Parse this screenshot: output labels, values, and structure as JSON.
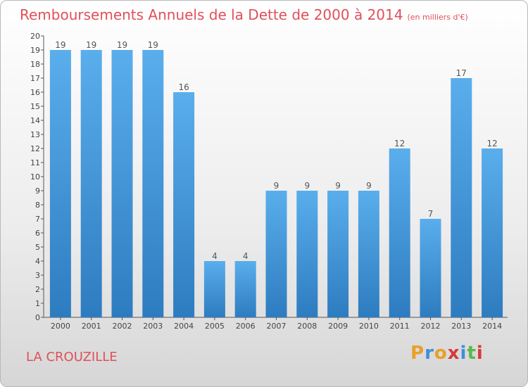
{
  "chart_data": {
    "type": "bar",
    "title": "Remboursements Annuels de la Dette de 2000 à 2014",
    "unit_label": "(en milliers d'€)",
    "categories": [
      "2000",
      "2001",
      "2002",
      "2003",
      "2004",
      "2005",
      "2006",
      "2007",
      "2008",
      "2009",
      "2010",
      "2011",
      "2012",
      "2013",
      "2014"
    ],
    "values": [
      19,
      19,
      19,
      19,
      16,
      4,
      4,
      9,
      9,
      9,
      9,
      12,
      7,
      17,
      12
    ],
    "ylim": [
      0,
      20
    ],
    "yticks": [
      "0",
      "1",
      "2",
      "3",
      "4",
      "5",
      "6",
      "7",
      "8",
      "9",
      "10",
      "11",
      "12",
      "13",
      "14",
      "15",
      "16",
      "17",
      "18",
      "19",
      "20"
    ],
    "grid": false,
    "bar_color": "#4a9ee0"
  },
  "footer": {
    "commune": "LA CROUZILLE",
    "logo": [
      "P",
      "r",
      "o",
      "x",
      "i",
      "t",
      "i"
    ],
    "logo_colors": [
      "#e8a02a",
      "#3f8fd6",
      "#e8a02a",
      "#d83a3a",
      "#3f8fd6",
      "#5cb84a",
      "#d83a3a"
    ]
  }
}
